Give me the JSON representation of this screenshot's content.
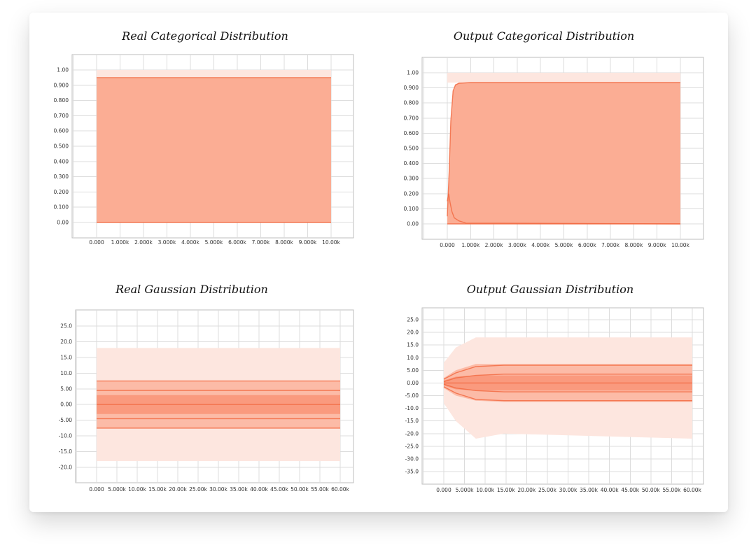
{
  "colors": {
    "band_outer": "#fde6df",
    "band_mid": "#fcbba7",
    "band_inner": "#fa9a7e",
    "line": "#f26b43",
    "grid": "#dcdcdc"
  },
  "chart_data": [
    {
      "type": "area",
      "title": "Real Categorical Distribution",
      "x_ticks": [
        "0.000",
        "1.000k",
        "2.000k",
        "3.000k",
        "4.000k",
        "5.000k",
        "6.000k",
        "7.000k",
        "8.000k",
        "9.000k",
        "10.00k"
      ],
      "y_ticks": [
        "1.00",
        "0.900",
        "0.800",
        "0.700",
        "0.600",
        "0.500",
        "0.400",
        "0.300",
        "0.200",
        "0.100",
        "0.00"
      ],
      "xlim": [
        0,
        10000
      ],
      "ylim": [
        0,
        1.0
      ],
      "bands": [
        {
          "level": "outer",
          "x": [
            0,
            10000
          ],
          "lower": [
            0.0,
            0.0
          ],
          "upper": [
            0.95,
            0.95
          ]
        }
      ],
      "lines": [
        {
          "x": [
            0,
            10000
          ],
          "y": [
            0.95,
            0.95
          ]
        },
        {
          "x": [
            0,
            10000
          ],
          "y": [
            0.0,
            0.0
          ]
        }
      ]
    },
    {
      "type": "area",
      "title": "Output Categorical Distribution",
      "x_ticks": [
        "0.000",
        "1.000k",
        "2.000k",
        "3.000k",
        "4.000k",
        "5.000k",
        "6.000k",
        "7.000k",
        "8.000k",
        "9.000k",
        "10.00k"
      ],
      "y_ticks": [
        "1.00",
        "0.900",
        "0.800",
        "0.700",
        "0.600",
        "0.500",
        "0.400",
        "0.300",
        "0.200",
        "0.100",
        "0.00"
      ],
      "xlim": [
        0,
        10000
      ],
      "ylim": [
        0,
        1.0
      ],
      "bands": [
        {
          "level": "outer",
          "x": [
            0,
            80,
            150,
            250,
            350,
            500,
            10000
          ],
          "lower": [
            0.0,
            0.0,
            0.0,
            0.0,
            0.0,
            0.0,
            0.0
          ],
          "upper": [
            0.05,
            0.35,
            0.68,
            0.88,
            0.92,
            0.935,
            0.935
          ]
        }
      ],
      "lines": [
        {
          "x": [
            0,
            80,
            150,
            250,
            350,
            500,
            1000,
            3000,
            6000,
            10000
          ],
          "y": [
            0.05,
            0.35,
            0.68,
            0.88,
            0.92,
            0.93,
            0.935,
            0.935,
            0.935,
            0.935
          ]
        },
        {
          "x": [
            0,
            60,
            120,
            200,
            300,
            500,
            800,
            10000
          ],
          "y": [
            0.15,
            0.2,
            0.14,
            0.08,
            0.04,
            0.02,
            0.005,
            0.0
          ]
        },
        {
          "x": [
            0,
            10000
          ],
          "y": [
            0.0,
            0.0
          ]
        }
      ]
    },
    {
      "type": "area",
      "title": "Real Gaussian Distribution",
      "x_ticks": [
        "0.000",
        "5.000k",
        "10.00k",
        "15.00k",
        "20.00k",
        "25.00k",
        "30.00k",
        "35.00k",
        "40.00k",
        "45.00k",
        "50.00k",
        "55.00k",
        "60.00k"
      ],
      "y_ticks": [
        "25.0",
        "20.0",
        "15.0",
        "10.0",
        "5.00",
        "0.00",
        "-5.00",
        "-10.0",
        "-15.0",
        "-20.0"
      ],
      "xlim": [
        0,
        62000
      ],
      "ylim": [
        -20,
        25
      ],
      "bands": [
        {
          "level": "outer",
          "x": [
            0,
            62000
          ],
          "lower": [
            -18,
            -18
          ],
          "upper": [
            18,
            18
          ]
        },
        {
          "level": "mid",
          "x": [
            0,
            62000
          ],
          "lower": [
            -7.5,
            -7.5
          ],
          "upper": [
            7.5,
            7.5
          ]
        },
        {
          "level": "inner",
          "x": [
            0,
            62000
          ],
          "lower": [
            -3,
            -3
          ],
          "upper": [
            3,
            3
          ]
        }
      ],
      "lines": [
        {
          "x": [
            0,
            62000
          ],
          "y": [
            7.5,
            7.5
          ]
        },
        {
          "x": [
            0,
            62000
          ],
          "y": [
            4.5,
            4.5
          ]
        },
        {
          "x": [
            0,
            62000
          ],
          "y": [
            0,
            0
          ]
        },
        {
          "x": [
            0,
            62000
          ],
          "y": [
            -4.5,
            -4.5
          ]
        },
        {
          "x": [
            0,
            62000
          ],
          "y": [
            -7.5,
            -7.5
          ]
        }
      ]
    },
    {
      "type": "area",
      "title": "Output Gaussian Distribution",
      "x_ticks": [
        "0.000",
        "5.000k",
        "10.00k",
        "15.00k",
        "20.00k",
        "25.00k",
        "30.00k",
        "35.00k",
        "40.00k",
        "45.00k",
        "50.00k",
        "55.00k",
        "60.00k"
      ],
      "y_ticks": [
        "25.0",
        "20.0",
        "15.0",
        "10.0",
        "5.00",
        "0.00",
        "-5.00",
        "-10.0",
        "-15.0",
        "-20.0",
        "-25.0",
        "-30.0",
        "-35.0"
      ],
      "xlim": [
        0,
        62000
      ],
      "ylim": [
        -35,
        25
      ],
      "bands": [
        {
          "level": "outer",
          "x": [
            0,
            3000,
            8000,
            15000,
            62000
          ],
          "lower": [
            -8,
            -15,
            -22,
            -20,
            -22
          ],
          "upper": [
            8,
            14,
            18,
            18,
            18
          ]
        },
        {
          "level": "mid",
          "x": [
            0,
            3000,
            8000,
            15000,
            62000
          ],
          "lower": [
            -2,
            -5,
            -7,
            -7.5,
            -7.5
          ],
          "upper": [
            2,
            5,
            7.5,
            7.5,
            7.5
          ]
        },
        {
          "level": "inner",
          "x": [
            0,
            3000,
            8000,
            15000,
            62000
          ],
          "lower": [
            -1,
            -2.5,
            -3,
            -3,
            -3
          ],
          "upper": [
            1,
            2.5,
            3,
            3,
            3
          ]
        }
      ],
      "lines": [
        {
          "x": [
            0,
            3000,
            8000,
            15000,
            62000
          ],
          "y": [
            1.5,
            4,
            6.5,
            7,
            7
          ]
        },
        {
          "x": [
            0,
            3000,
            8000,
            15000,
            62000
          ],
          "y": [
            0.5,
            2,
            3,
            3.5,
            3.5
          ]
        },
        {
          "x": [
            0,
            3000,
            8000,
            15000,
            62000
          ],
          "y": [
            0,
            0,
            0,
            0,
            0
          ]
        },
        {
          "x": [
            0,
            3000,
            8000,
            15000,
            62000
          ],
          "y": [
            -0.5,
            -2,
            -3,
            -3.5,
            -3.5
          ]
        },
        {
          "x": [
            0,
            3000,
            8000,
            15000,
            62000
          ],
          "y": [
            -1.5,
            -4,
            -6.5,
            -7,
            -7
          ]
        }
      ]
    }
  ]
}
